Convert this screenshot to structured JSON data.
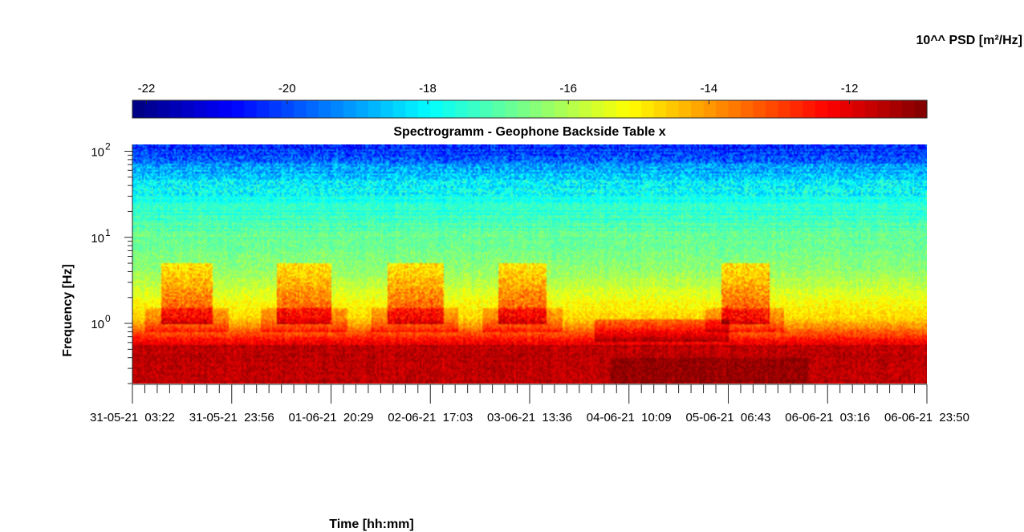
{
  "chart_data": {
    "type": "heatmap",
    "title": "Spectrogramm - Geophone Backside Table x",
    "xlabel": "Time [hh:mm]",
    "ylabel": "Frequency [Hz]",
    "colorbar": {
      "label": "10^^ PSD [m²/Hz]",
      "range": [
        -22.2,
        -10.9
      ],
      "ticks": [
        -22,
        -20,
        -18,
        -16,
        -14,
        -12
      ],
      "tick_labels": [
        "-22",
        "-20",
        "-18",
        "-16",
        "-14",
        "-12"
      ],
      "colormap": "jet",
      "location": "top"
    },
    "y_axis": {
      "scale": "log",
      "range": [
        0.2,
        120
      ],
      "ticks": [
        1,
        10,
        100
      ],
      "tick_labels": [
        "10^0",
        "10^1",
        "10^2"
      ]
    },
    "x_axis": {
      "major_tick_labels": [
        "31-05-21  03:22",
        "31-05-21  23:56",
        "01-06-21  20:29",
        "02-06-21  17:03",
        "03-06-21  13:36",
        "04-06-21  10:09",
        "05-06-21  06:43",
        "06-06-21  03:16",
        "06-06-21  23:50"
      ],
      "minor_ticks_per_interval": 7
    },
    "description_bands": [
      {
        "f_min": 0.2,
        "f_max": 0.7,
        "level": -11.8
      },
      {
        "f_min": 0.7,
        "f_max": 1.2,
        "level": -14.2
      },
      {
        "f_min": 1.2,
        "f_max": 10,
        "level": -16.5
      },
      {
        "f_min": 10,
        "f_max": 40,
        "level": -17.8
      },
      {
        "f_min": 40,
        "f_max": 120,
        "level": -19.8
      }
    ],
    "activity_periods_fraction": [
      [
        0.035,
        0.1
      ],
      [
        0.18,
        0.25
      ],
      [
        0.32,
        0.39
      ],
      [
        0.46,
        0.52
      ],
      [
        0.74,
        0.8
      ]
    ],
    "grid": false
  }
}
